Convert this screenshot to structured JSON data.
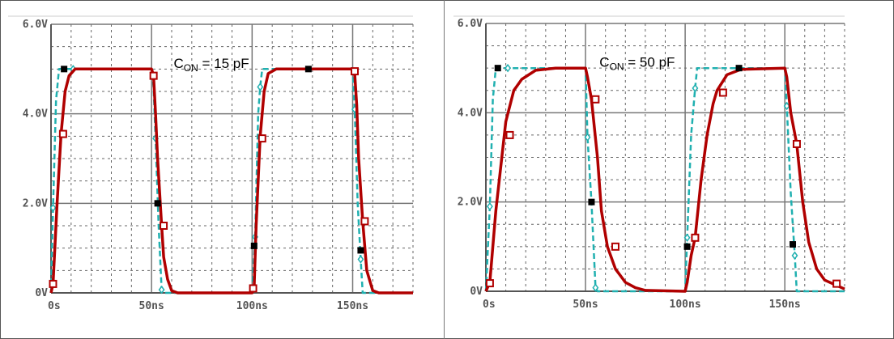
{
  "chart_data": [
    {
      "type": "line",
      "annotation": {
        "main": "C",
        "sub": "ON",
        "rest": " = 15 pF",
        "x": 61,
        "y": 5.1
      },
      "xlim": [
        0,
        180
      ],
      "ylim": [
        0,
        6
      ],
      "x_ticks": [
        {
          "v": 0,
          "label": "0s"
        },
        {
          "v": 50,
          "label": "50ns"
        },
        {
          "v": 100,
          "label": "100ns"
        },
        {
          "v": 150,
          "label": "150ns"
        }
      ],
      "y_ticks": [
        {
          "v": 0,
          "label": "0V"
        },
        {
          "v": 2,
          "label": "2.0V"
        },
        {
          "v": 4,
          "label": "4.0V"
        },
        {
          "v": 6,
          "label": "6.0V"
        }
      ],
      "grid": true,
      "series": [
        {
          "color": "#20b0b0",
          "style": "dashed",
          "marker": "diamond",
          "points": [
            [
              0,
              0
            ],
            [
              1,
              1.9
            ],
            [
              2.5,
              4.3
            ],
            [
              4,
              5
            ],
            [
              50,
              5
            ],
            [
              51,
              4.6
            ],
            [
              52,
              3.45
            ],
            [
              53.5,
              1.5
            ],
            [
              55,
              0.07
            ],
            [
              56,
              0
            ],
            [
              100,
              0
            ],
            [
              101.5,
              1.25
            ],
            [
              103,
              4.0
            ],
            [
              104,
              4.6
            ],
            [
              105,
              5
            ],
            [
              150,
              5
            ],
            [
              151,
              4.1
            ],
            [
              152.5,
              2.0
            ],
            [
              154,
              0.75
            ],
            [
              155,
              0
            ],
            [
              180,
              0
            ]
          ],
          "markers": [
            [
              1,
              1.9
            ],
            [
              11,
              5
            ],
            [
              52,
              3.45
            ],
            [
              55,
              0.07
            ],
            [
              101.5,
              1.25
            ],
            [
              104,
              4.6
            ],
            [
              151,
              4.1
            ],
            [
              154,
              0.75
            ]
          ]
        },
        {
          "color": "#b00000",
          "style": "solid",
          "marker": "square",
          "points": [
            [
              0,
              0
            ],
            [
              1,
              0.2
            ],
            [
              3,
              2
            ],
            [
              5,
              3.55
            ],
            [
              7,
              4.5
            ],
            [
              9,
              4.85
            ],
            [
              12,
              5
            ],
            [
              50,
              5
            ],
            [
              51,
              4.85
            ],
            [
              52,
              4
            ],
            [
              53,
              3
            ],
            [
              55,
              1.5
            ],
            [
              56,
              0.8
            ],
            [
              58,
              0.3
            ],
            [
              60,
              0.05
            ],
            [
              63,
              0
            ],
            [
              100,
              0
            ],
            [
              101,
              0.1
            ],
            [
              102,
              1.5
            ],
            [
              104,
              3.5
            ],
            [
              106,
              4.5
            ],
            [
              108,
              4.9
            ],
            [
              112,
              5
            ],
            [
              150,
              5
            ],
            [
              151,
              4.9
            ],
            [
              152,
              4.2
            ],
            [
              153,
              3
            ],
            [
              155,
              1.6
            ],
            [
              157,
              0.5
            ],
            [
              160,
              0.05
            ],
            [
              163,
              0
            ],
            [
              180,
              0
            ]
          ],
          "markers": [
            [
              1,
              0.2
            ],
            [
              6,
              3.55
            ],
            [
              51,
              4.85
            ],
            [
              56,
              1.5
            ],
            [
              100.5,
              0.1
            ],
            [
              105,
              3.45
            ],
            [
              151,
              4.95
            ],
            [
              156,
              1.6
            ]
          ]
        },
        {
          "color": "#000000",
          "style": "none",
          "marker": "filled-square",
          "points": [],
          "markers": [
            [
              6.5,
              5
            ],
            [
              53,
              2
            ],
            [
              101,
              1.05
            ],
            [
              128,
              5
            ],
            [
              154,
              0.95
            ]
          ]
        }
      ]
    },
    {
      "type": "line",
      "annotation": {
        "main": "C",
        "sub": "ON",
        "rest": " = 50 pF",
        "x": 57,
        "y": 5.1
      },
      "xlim": [
        0,
        180
      ],
      "ylim": [
        0,
        6
      ],
      "x_ticks": [
        {
          "v": 0,
          "label": "0s"
        },
        {
          "v": 50,
          "label": "50ns"
        },
        {
          "v": 100,
          "label": "100ns"
        },
        {
          "v": 150,
          "label": "150ns"
        }
      ],
      "y_ticks": [
        {
          "v": 0,
          "label": "0V"
        },
        {
          "v": 2,
          "label": "2.0V"
        },
        {
          "v": 4,
          "label": "4.0V"
        },
        {
          "v": 6,
          "label": "6.0V"
        }
      ],
      "grid": true,
      "series": [
        {
          "color": "#20b0b0",
          "style": "dashed",
          "marker": "diamond",
          "points": [
            [
              0,
              0
            ],
            [
              2,
              1.9
            ],
            [
              3.5,
              4.3
            ],
            [
              5,
              5
            ],
            [
              50,
              5
            ],
            [
              51,
              3.45
            ],
            [
              53,
              2
            ],
            [
              55,
              0.08
            ],
            [
              56,
              0
            ],
            [
              100,
              0
            ],
            [
              101,
              1.2
            ],
            [
              103,
              3.5
            ],
            [
              105,
              4.55
            ],
            [
              106,
              5
            ],
            [
              150,
              5
            ],
            [
              151,
              4.15
            ],
            [
              153,
              2.2
            ],
            [
              155,
              0.8
            ],
            [
              156,
              0
            ],
            [
              180,
              0
            ]
          ],
          "markers": [
            [
              2,
              1.9
            ],
            [
              11,
              5
            ],
            [
              51,
              3.45
            ],
            [
              55,
              0.08
            ],
            [
              101,
              1.2
            ],
            [
              105,
              4.55
            ],
            [
              151,
              4.15
            ],
            [
              155,
              0.8
            ]
          ]
        },
        {
          "color": "#b00000",
          "style": "solid",
          "marker": "square",
          "points": [
            [
              0,
              0
            ],
            [
              2,
              0.2
            ],
            [
              5,
              1.8
            ],
            [
              8,
              3.0
            ],
            [
              10,
              3.8
            ],
            [
              14,
              4.5
            ],
            [
              18,
              4.75
            ],
            [
              25,
              4.95
            ],
            [
              35,
              5
            ],
            [
              50,
              5
            ],
            [
              51,
              4.8
            ],
            [
              53,
              4.3
            ],
            [
              56,
              3.0
            ],
            [
              58,
              1.8
            ],
            [
              61,
              1
            ],
            [
              65,
              0.5
            ],
            [
              70,
              0.2
            ],
            [
              75,
              0.08
            ],
            [
              80,
              0.02
            ],
            [
              100,
              0
            ],
            [
              101,
              0.2
            ],
            [
              103,
              0.8
            ],
            [
              105,
              1.2
            ],
            [
              108,
              2.5
            ],
            [
              111,
              3.5
            ],
            [
              114,
              4.2
            ],
            [
              116,
              4.5
            ],
            [
              121,
              4.85
            ],
            [
              128,
              4.97
            ],
            [
              150,
              5
            ],
            [
              151,
              4.8
            ],
            [
              153,
              4.0
            ],
            [
              156,
              3.3
            ],
            [
              159,
              2
            ],
            [
              162,
              1.1
            ],
            [
              166,
              0.5
            ],
            [
              170,
              0.25
            ],
            [
              175,
              0.15
            ],
            [
              180,
              0.05
            ]
          ],
          "markers": [
            [
              2,
              0.18
            ],
            [
              12,
              3.5
            ],
            [
              55,
              4.3
            ],
            [
              65,
              1.0
            ],
            [
              105,
              1.2
            ],
            [
              119,
              4.45
            ],
            [
              156,
              3.3
            ],
            [
              176,
              0.17
            ]
          ]
        },
        {
          "color": "#000000",
          "style": "none",
          "marker": "filled-square",
          "points": [],
          "markers": [
            [
              6,
              5
            ],
            [
              53,
              2
            ],
            [
              101,
              1
            ],
            [
              127,
              5
            ],
            [
              154,
              1.05
            ]
          ]
        }
      ]
    }
  ]
}
